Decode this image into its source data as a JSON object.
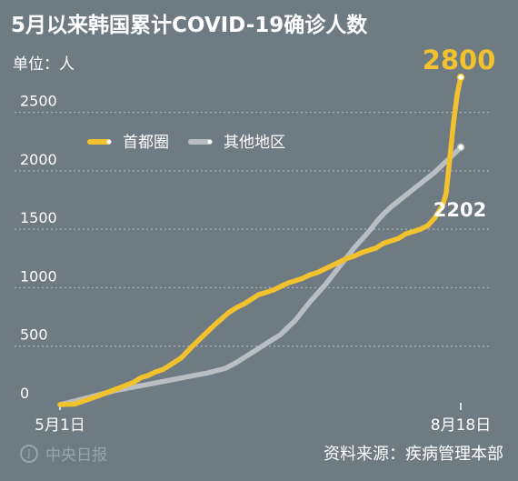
{
  "title": "5月以来韩国累计COVID-19确诊人数",
  "unit_label": "单位：人",
  "source": "资料来源：疾病管理本部",
  "brand": "中央日报",
  "colors": {
    "background": "#6f7b82",
    "capital": "#f2c12e",
    "other": "#b9bec2",
    "grid": "#aab2b7"
  },
  "chart_data": {
    "type": "line",
    "title": "5月以来韩国累计COVID-19确诊人数",
    "ylabel": "单位：人",
    "ylim": [
      0,
      2800
    ],
    "yticks": [
      0,
      500,
      1000,
      1500,
      2000,
      2500
    ],
    "xlim": [
      0,
      109
    ],
    "x_tick_labels": [
      {
        "x": 0,
        "label": "5月1日"
      },
      {
        "x": 109,
        "label": "8月18日"
      }
    ],
    "grid": true,
    "legend_position": "top-left",
    "series": [
      {
        "name": "首都圈",
        "color": "#f2c12e",
        "end_label": "2800",
        "x": [
          0,
          4,
          10,
          15,
          20,
          22,
          24,
          26,
          28,
          30,
          33,
          36,
          39,
          42,
          46,
          48,
          50,
          52,
          54,
          56,
          58,
          60,
          62,
          64,
          66,
          68,
          70,
          72,
          74,
          76,
          78,
          80,
          82,
          84,
          86,
          88,
          90,
          92,
          94,
          96,
          98,
          100,
          102,
          104,
          105,
          106,
          107,
          108,
          109
        ],
        "y": [
          0,
          5,
          70,
          130,
          190,
          230,
          250,
          280,
          300,
          340,
          400,
          500,
          590,
          680,
          790,
          830,
          860,
          900,
          940,
          960,
          980,
          1010,
          1040,
          1060,
          1080,
          1110,
          1130,
          1160,
          1190,
          1220,
          1250,
          1270,
          1300,
          1320,
          1340,
          1380,
          1400,
          1420,
          1460,
          1480,
          1500,
          1530,
          1600,
          1700,
          1800,
          2100,
          2400,
          2650,
          2800
        ]
      },
      {
        "name": "其他地区",
        "color": "#b9bec2",
        "end_label": "2202",
        "x": [
          0,
          4,
          10,
          15,
          20,
          25,
          30,
          35,
          40,
          45,
          48,
          50,
          52,
          54,
          56,
          58,
          60,
          62,
          64,
          66,
          68,
          70,
          72,
          74,
          76,
          78,
          80,
          82,
          84,
          86,
          88,
          90,
          92,
          94,
          96,
          98,
          100,
          102,
          104,
          106,
          108,
          109
        ],
        "y": [
          0,
          30,
          80,
          120,
          150,
          180,
          210,
          240,
          270,
          310,
          360,
          400,
          440,
          480,
          520,
          560,
          600,
          660,
          720,
          800,
          880,
          950,
          1020,
          1100,
          1180,
          1260,
          1340,
          1410,
          1480,
          1560,
          1630,
          1690,
          1740,
          1790,
          1840,
          1890,
          1940,
          1990,
          2050,
          2110,
          2170,
          2202
        ]
      }
    ]
  }
}
